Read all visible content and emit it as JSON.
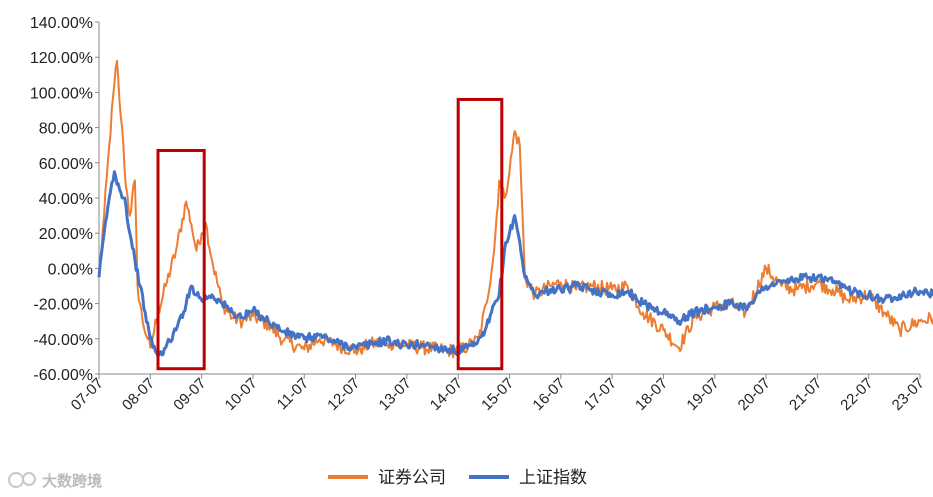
{
  "chart_data": {
    "type": "line",
    "title": "",
    "xlabel": "",
    "ylabel": "",
    "ylim": [
      -60,
      140
    ],
    "y_ticks": [
      "140.00%",
      "120.00%",
      "100.00%",
      "80.00%",
      "60.00%",
      "40.00%",
      "20.00%",
      "0.00%",
      "-20.00%",
      "-40.00%",
      "-60.00%"
    ],
    "x_ticks": [
      "07-07",
      "08-07",
      "09-07",
      "10-07",
      "11-07",
      "12-07",
      "13-07",
      "14-07",
      "15-07",
      "16-07",
      "17-07",
      "18-07",
      "19-07",
      "20-07",
      "21-07",
      "22-07",
      "23-07"
    ],
    "grid": false,
    "legend_position": "bottom",
    "series": [
      {
        "name": "证券公司",
        "color": "#ED7D31",
        "x": [
          0,
          0.1,
          0.2,
          0.3,
          0.35,
          0.4,
          0.45,
          0.5,
          0.6,
          0.7,
          0.75,
          0.85,
          0.95,
          1.0,
          1.15,
          1.3,
          1.5,
          1.7,
          1.8,
          1.9,
          2.0,
          2.08,
          2.2,
          2.4,
          2.6,
          2.8,
          3.0,
          3.3,
          3.6,
          4.0,
          4.3,
          4.6,
          5.0,
          5.3,
          5.6,
          6.0,
          6.3,
          6.6,
          7.0,
          7.2,
          7.4,
          7.55,
          7.7,
          7.8,
          7.9,
          8.0,
          8.1,
          8.2,
          8.3,
          8.5,
          8.8,
          9.0,
          9.3,
          9.6,
          10.0,
          10.3,
          10.6,
          11.0,
          11.3,
          11.6,
          12.0,
          12.3,
          12.6,
          13.0,
          13.3,
          13.6,
          14.0,
          14.3,
          14.6,
          15.0,
          15.3,
          15.6,
          16.0,
          16.3
        ],
        "values": [
          -5,
          30,
          70,
          105,
          118,
          95,
          80,
          55,
          30,
          50,
          -10,
          -30,
          -40,
          -45,
          -25,
          -10,
          10,
          38,
          25,
          10,
          20,
          26,
          5,
          -20,
          -28,
          -30,
          -27,
          -32,
          -41,
          -46,
          -40,
          -43,
          -47,
          -43,
          -42,
          -44,
          -45,
          -46,
          -47,
          -44,
          -40,
          -20,
          10,
          50,
          40,
          55,
          78,
          70,
          -5,
          -15,
          -10,
          -8,
          -12,
          -10,
          -12,
          -10,
          -25,
          -35,
          -45,
          -28,
          -22,
          -20,
          -25,
          0,
          -10,
          -12,
          -8,
          -12,
          -18,
          -15,
          -25,
          -35,
          -30,
          -28
        ]
      },
      {
        "name": "上证指数",
        "color": "#4472C4",
        "x": [
          0,
          0.1,
          0.2,
          0.3,
          0.4,
          0.5,
          0.6,
          0.7,
          0.8,
          0.9,
          1.0,
          1.15,
          1.3,
          1.5,
          1.7,
          1.8,
          2.0,
          2.2,
          2.4,
          2.6,
          2.8,
          3.0,
          3.3,
          3.6,
          4.0,
          4.3,
          4.6,
          5.0,
          5.3,
          5.6,
          6.0,
          6.3,
          6.6,
          7.0,
          7.3,
          7.5,
          7.65,
          7.8,
          7.9,
          8.0,
          8.1,
          8.2,
          8.3,
          8.5,
          8.8,
          9.0,
          9.3,
          9.6,
          10.0,
          10.3,
          10.6,
          11.0,
          11.3,
          11.6,
          12.0,
          12.3,
          12.6,
          13.0,
          13.3,
          13.6,
          14.0,
          14.3,
          14.6,
          15.0,
          15.3,
          15.6,
          16.0,
          16.3
        ],
        "values": [
          -5,
          20,
          40,
          55,
          45,
          40,
          20,
          5,
          -10,
          -25,
          -40,
          -50,
          -45,
          -35,
          -20,
          -10,
          -18,
          -15,
          -20,
          -25,
          -28,
          -24,
          -30,
          -36,
          -40,
          -38,
          -42,
          -45,
          -43,
          -41,
          -44,
          -43,
          -45,
          -47,
          -44,
          -38,
          -25,
          -15,
          10,
          20,
          30,
          15,
          -5,
          -15,
          -12,
          -12,
          -10,
          -12,
          -15,
          -13,
          -20,
          -25,
          -30,
          -25,
          -22,
          -20,
          -22,
          -10,
          -8,
          -6,
          -5,
          -8,
          -12,
          -15,
          -18,
          -15,
          -13,
          -15
        ]
      }
    ],
    "highlight_boxes": [
      {
        "x_start": 1.15,
        "x_end": 2.05,
        "y_top": 67,
        "y_bottom": -57
      },
      {
        "x_start": 7.0,
        "x_end": 7.85,
        "y_top": 96,
        "y_bottom": -57
      }
    ]
  },
  "watermark": {
    "text": "大数跨境"
  }
}
